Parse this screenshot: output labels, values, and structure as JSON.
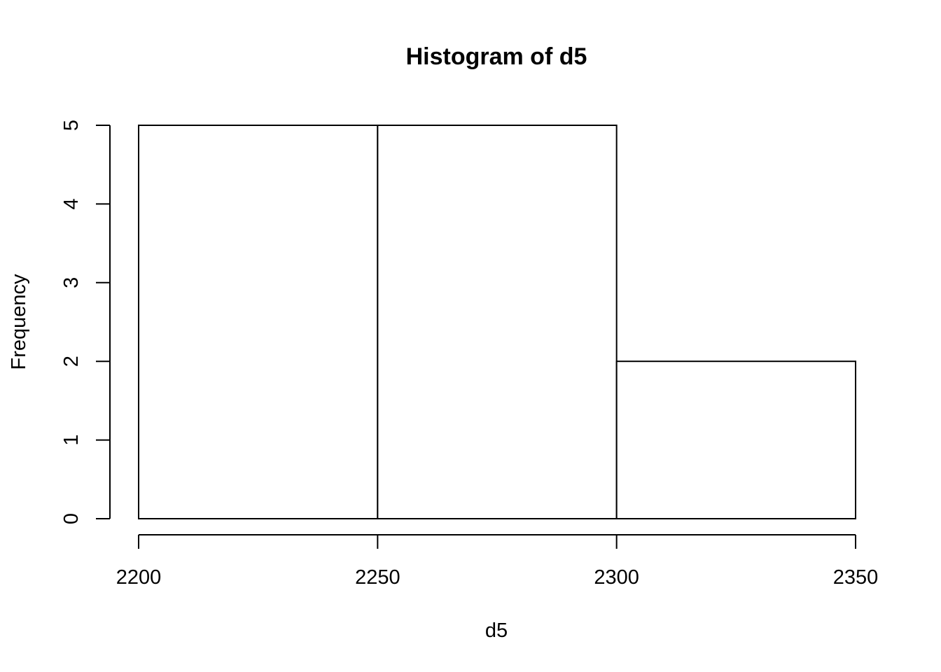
{
  "chart_data": {
    "type": "bar",
    "title": "Histogram of d5",
    "xlabel": "d5",
    "ylabel": "Frequency",
    "bins": [
      {
        "start": 2200,
        "end": 2250,
        "count": 5
      },
      {
        "start": 2250,
        "end": 2300,
        "count": 5
      },
      {
        "start": 2300,
        "end": 2350,
        "count": 2
      }
    ],
    "xlim": [
      2200,
      2350
    ],
    "ylim": [
      0,
      5
    ],
    "x_ticks": [
      2200,
      2250,
      2300,
      2350
    ],
    "y_ticks": [
      0,
      1,
      2,
      3,
      4,
      5
    ],
    "grid": false,
    "bar_fill": "#ffffff",
    "bar_stroke": "#000000"
  }
}
